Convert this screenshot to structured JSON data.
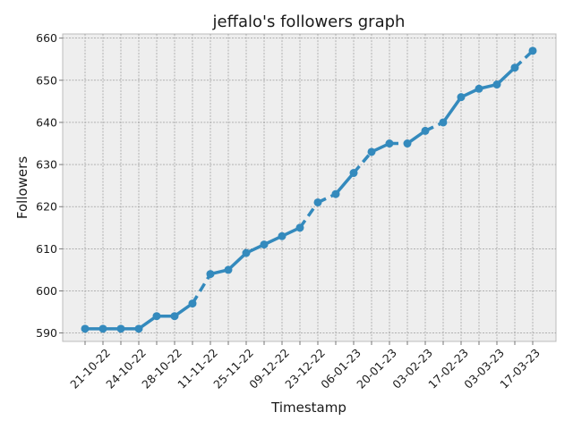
{
  "chart_data": {
    "type": "line",
    "title": "jeffalo's followers graph",
    "xlabel": "Timestamp",
    "ylabel": "Followers",
    "ylim": [
      588,
      661
    ],
    "yticks": [
      590,
      600,
      610,
      620,
      630,
      640,
      650,
      660
    ],
    "grid": true,
    "x_tick_labels": [
      "21-10-22",
      "24-10-22",
      "28-10-22",
      "11-11-22",
      "25-11-22",
      "09-12-22",
      "23-12-22",
      "06-01-23",
      "20-01-23",
      "03-02-23",
      "17-02-23",
      "03-03-23",
      "17-03-23"
    ],
    "series": [
      {
        "values": [
          591,
          591,
          591,
          591,
          594,
          594,
          597,
          604,
          605,
          609,
          611,
          613,
          615,
          621,
          623,
          628,
          633,
          635,
          635,
          638,
          640,
          646,
          648,
          649,
          653,
          657
        ],
        "line_style": [
          "solid",
          "solid",
          "solid",
          "solid",
          "solid",
          "solid",
          "dashed",
          "solid",
          "solid",
          "solid",
          "solid",
          "solid",
          "dashed",
          "dashed",
          "solid",
          "dashed",
          "solid",
          "dashed",
          "solid",
          "dashed",
          "solid",
          "solid",
          "solid",
          "solid",
          "dashed"
        ]
      }
    ],
    "colors": {
      "line": "#348abd",
      "background": "#eeeeee",
      "grid": "#8c8c8c"
    }
  }
}
